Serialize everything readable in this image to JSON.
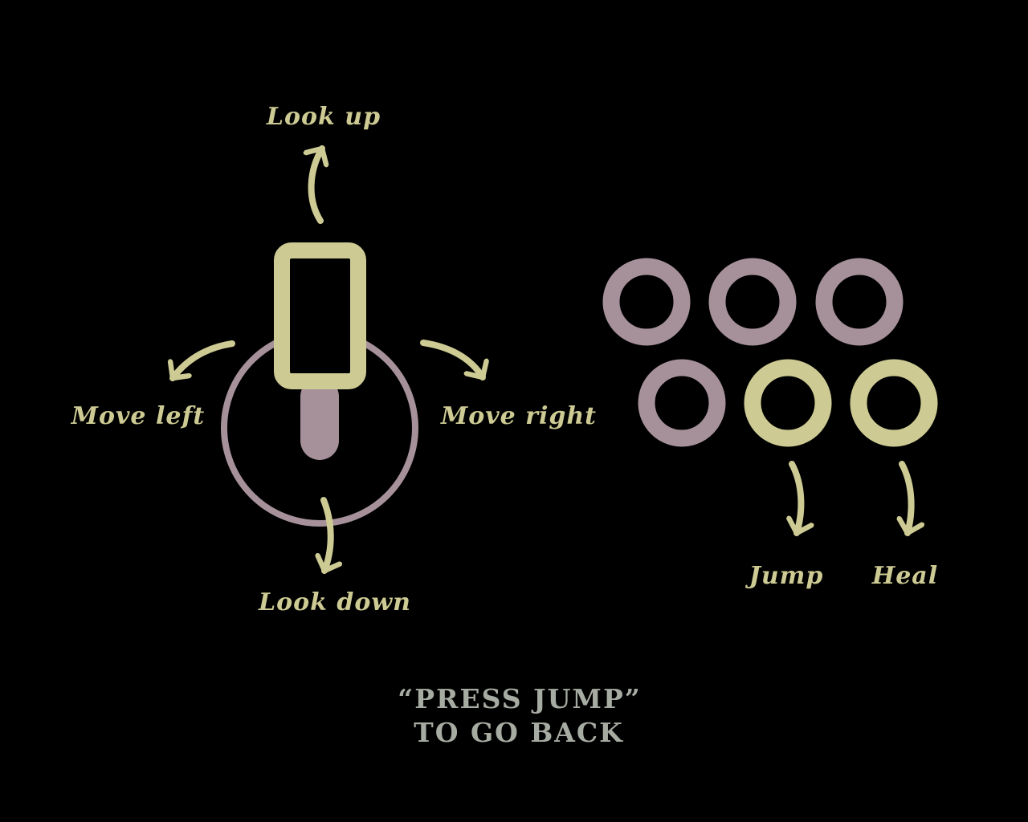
{
  "colors": {
    "background": "#000000",
    "accent_yellow": "#cdcb93",
    "accent_mauve": "#a6919a",
    "prompt_text": "#a7aca3"
  },
  "stick": {
    "labels": {
      "up": "Look up",
      "down": "Look down",
      "left": "Move left",
      "right": "Move right"
    }
  },
  "buttons": {
    "jump_label": "Jump",
    "heal_label": "Heal"
  },
  "prompt": {
    "line1": "“PRESS JUMP”",
    "line2": "TO GO BACK"
  }
}
